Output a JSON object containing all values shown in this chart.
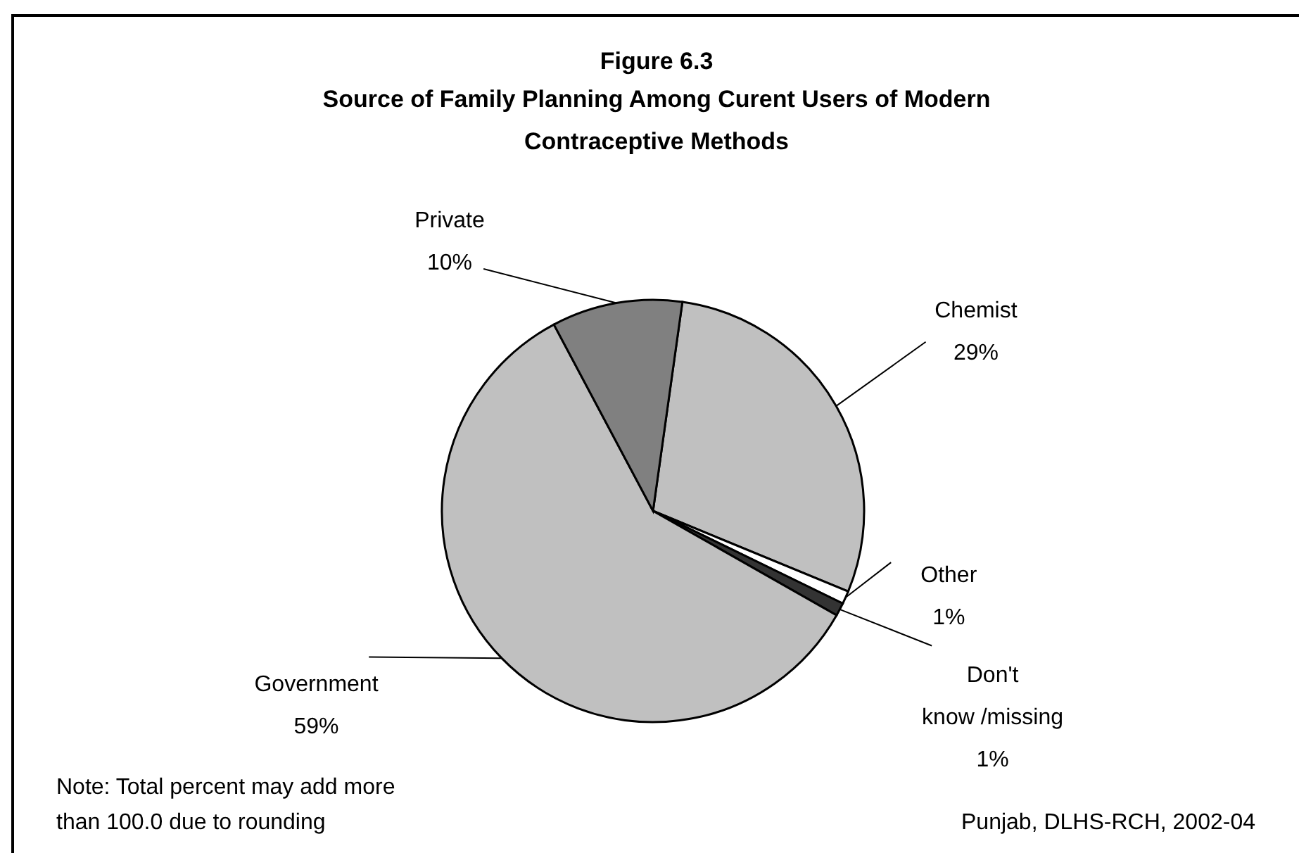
{
  "chart_data": {
    "type": "pie",
    "title": "Figure 6.3",
    "subtitle": "Source of Family Planning Among Curent Users of Modern Contraceptive Methods",
    "categories": [
      "Chemist",
      "Other",
      "Don't know /missing",
      "Government",
      "Private"
    ],
    "values": [
      29,
      1,
      1,
      59,
      10
    ],
    "colors": [
      "#c0c0c0",
      "#ffffff",
      "#333333",
      "#c0c0c0",
      "#808080"
    ],
    "value_labels": [
      "29%",
      "1%",
      "1%",
      "59%",
      "10%"
    ],
    "annotations": [
      "Note: Total percent may add more than 100.0 due to rounding",
      "Punjab, DLHS-RCH, 2002-04"
    ]
  }
}
